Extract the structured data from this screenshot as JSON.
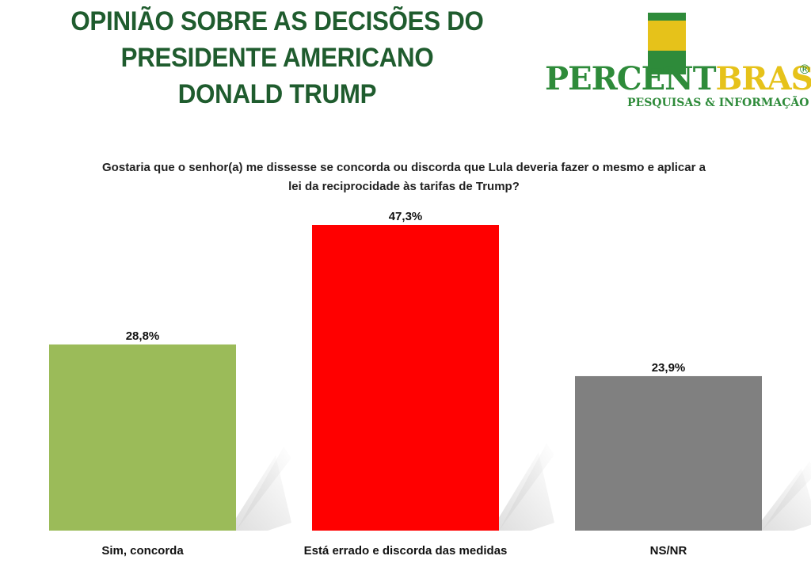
{
  "title_lines": [
    "OPINIÃO SOBRE AS DECISÕES DO",
    "PRESIDENTE AMERICANO",
    "DONALD TRUMP"
  ],
  "logo": {
    "word_part1": "PERCENT",
    "word_part2": "BRASIL",
    "registered": "®",
    "subtitle": "PESQUISAS & INFORMAÇÃO"
  },
  "question_lines": [
    "Gostaria que o senhor(a) me dissesse se concorda ou discorda que Lula deveria fazer o mesmo e aplicar a",
    "lei da reciprocidade às tarifas de Trump?"
  ],
  "colors": {
    "title": "#1f5c2e",
    "bar_colors": [
      "#9bbb59",
      "#ff0000",
      "#808080"
    ],
    "shadow": "#d9d9d9"
  },
  "chart_data": {
    "type": "bar",
    "categories": [
      "Sim, concorda",
      "Está errado e discorda das medidas",
      "NS/NR"
    ],
    "values": [
      28.8,
      47.3,
      23.9
    ],
    "value_labels": [
      "28,8%",
      "47,3%",
      "23,9%"
    ],
    "title": "",
    "xlabel": "",
    "ylabel": "",
    "ylim": [
      0,
      50
    ],
    "grid": false,
    "legend": "none"
  }
}
